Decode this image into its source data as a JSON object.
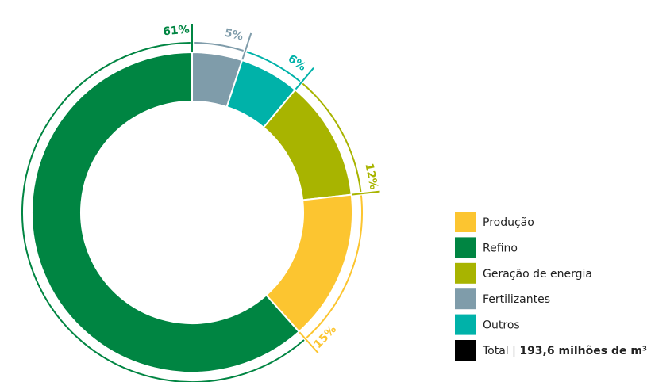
{
  "chart_data": {
    "type": "donut",
    "categories": [
      "Fertilizantes",
      "Outros",
      "Geração de energia",
      "Produção",
      "Refino"
    ],
    "values": [
      5,
      6,
      12,
      15,
      61
    ],
    "value_labels": [
      "5%",
      "6%",
      "12%",
      "15%",
      "61%"
    ],
    "colors": [
      "#7f9caa",
      "#00b2a9",
      "#a8b400",
      "#fcc530",
      "#008542"
    ],
    "legend_order": [
      3,
      4,
      2,
      0,
      1
    ],
    "total_label": "Total |",
    "total_value": "193,6 milhões de m³",
    "total_color": "#000000"
  }
}
